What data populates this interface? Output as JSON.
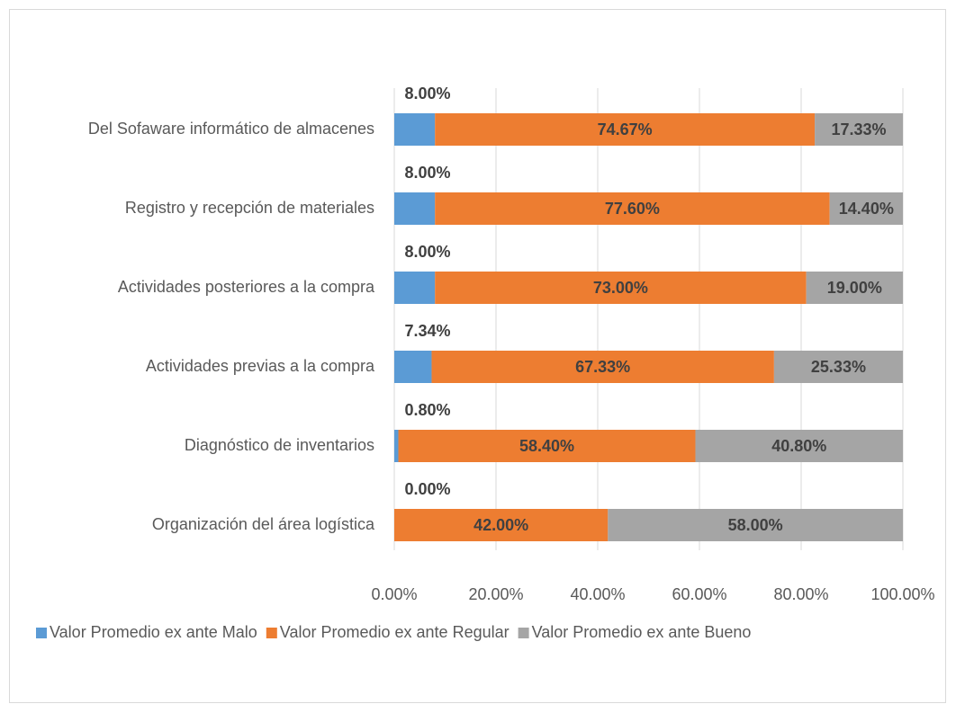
{
  "chart_data": {
    "type": "stacked_bar_horizontal",
    "categories": [
      "Del Sofaware informático de almacenes",
      "Registro y recepción de materiales",
      "Actividades posteriores a la compra",
      "Actividades previas a la compra",
      "Diagnóstico de inventarios",
      "Organización del área logística"
    ],
    "series": [
      {
        "name": "Valor Promedio ex ante Malo",
        "color": "#5b9bd5",
        "values": [
          8,
          8,
          8,
          7.34,
          0.8,
          0
        ],
        "value_labels": [
          "8.00%",
          "8.00%",
          "8.00%",
          "7.34%",
          "0.80%",
          "0.00%"
        ]
      },
      {
        "name": "Valor Promedio ex ante Regular",
        "color": "#ed7d31",
        "values": [
          74.67,
          77.6,
          73,
          67.33,
          58.4,
          42
        ],
        "value_labels": [
          "74.67%",
          "77.60%",
          "73.00%",
          "67.33%",
          "58.40%",
          "42.00%"
        ]
      },
      {
        "name": "Valor Promedio ex ante Bueno",
        "color": "#a5a5a5",
        "values": [
          17.33,
          14.4,
          19,
          25.33,
          40.8,
          58
        ],
        "value_labels": [
          "17.33%",
          "14.40%",
          "19.00%",
          "25.33%",
          "40.80%",
          "58.00%"
        ]
      }
    ],
    "xlim": [
      0,
      100
    ],
    "xticks": [
      {
        "value": 0,
        "label": "0.00%"
      },
      {
        "value": 20,
        "label": "20.00%"
      },
      {
        "value": 40,
        "label": "40.00%"
      },
      {
        "value": 60,
        "label": "60.00%"
      },
      {
        "value": 80,
        "label": "80.00%"
      },
      {
        "value": 100,
        "label": "100.00%"
      }
    ],
    "grid": true,
    "legend": "bottom"
  }
}
